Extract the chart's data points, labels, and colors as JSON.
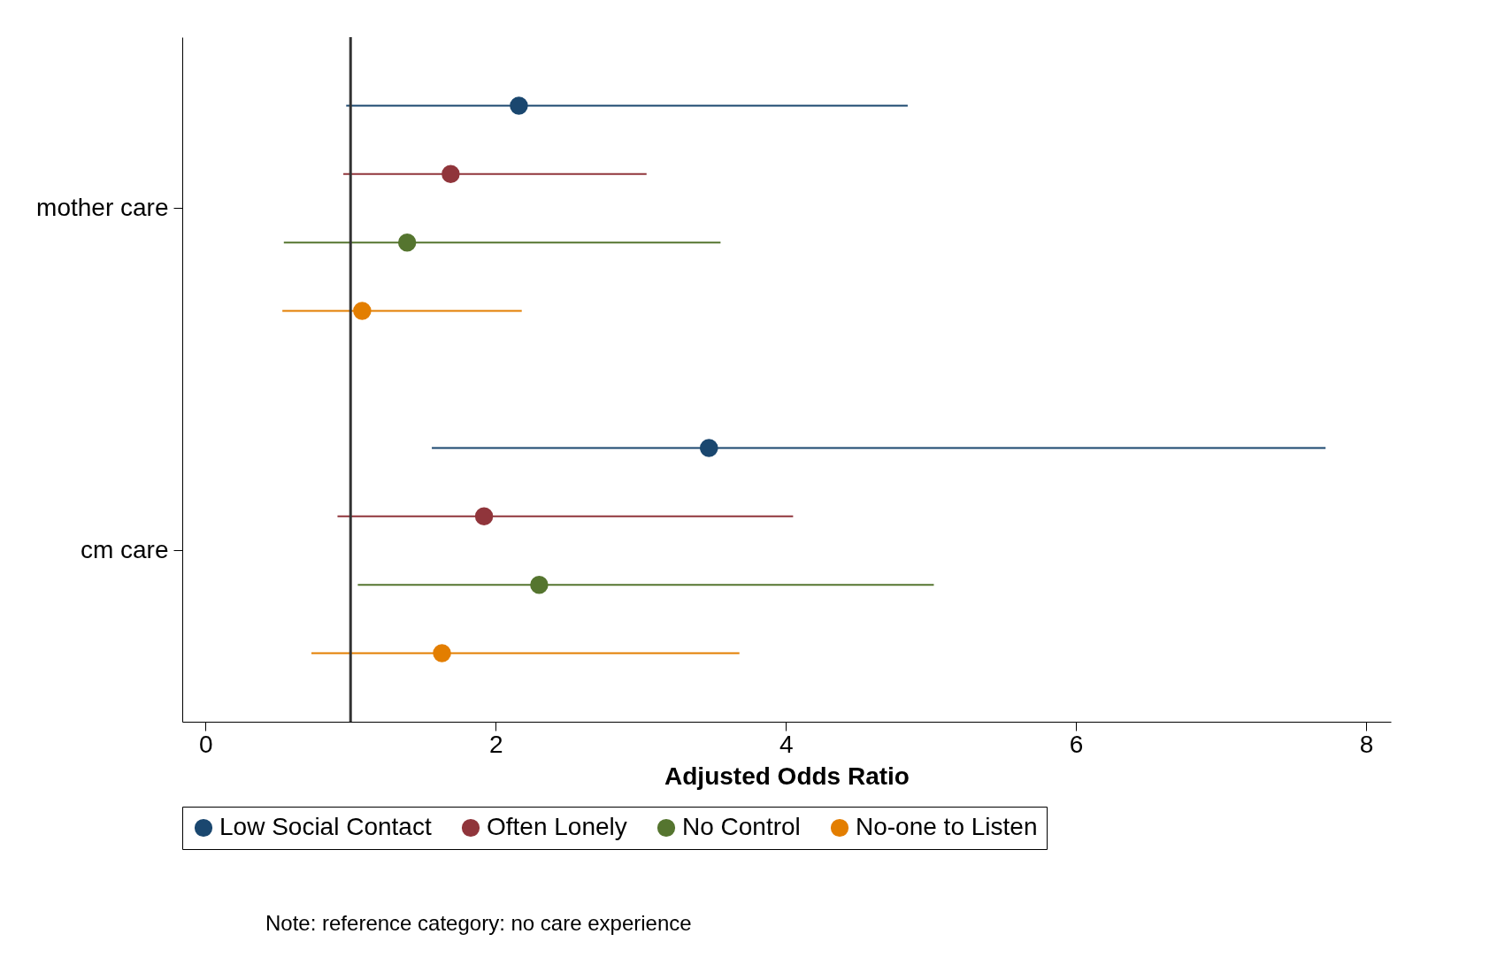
{
  "chart_data": {
    "type": "scatter",
    "orientation": "horizontal",
    "xlabel": "Adjusted Odds Ratio",
    "categories": [
      "mother care",
      "cm care"
    ],
    "series": [
      {
        "name": "Low Social Contact",
        "color": "#1a476f",
        "values": [
          2.16,
          3.47
        ],
        "errors": [
          [
            0.97,
            4.84
          ],
          [
            1.56,
            7.72
          ]
        ]
      },
      {
        "name": "Often Lonely",
        "color": "#90353b",
        "values": [
          1.69,
          1.92
        ],
        "errors": [
          [
            0.95,
            3.04
          ],
          [
            0.91,
            4.05
          ]
        ]
      },
      {
        "name": "No Control",
        "color": "#55752f",
        "values": [
          1.39,
          2.3
        ],
        "errors": [
          [
            0.54,
            3.55
          ],
          [
            1.05,
            5.02
          ]
        ]
      },
      {
        "name": "No-one to Listen",
        "color": "#e37e00",
        "values": [
          1.08,
          1.63
        ],
        "errors": [
          [
            0.53,
            2.18
          ],
          [
            0.73,
            3.68
          ]
        ]
      }
    ],
    "xlim": [
      -0.16,
      8.17
    ],
    "xticks": [
      0,
      2,
      4,
      6,
      8
    ],
    "ref_lines": [
      {
        "axis": "x",
        "value": 1,
        "color": "#333333"
      }
    ],
    "legend": "bottom",
    "marker": "circle",
    "grid": false,
    "annotations": [
      "Note: reference category: no care experience"
    ]
  }
}
